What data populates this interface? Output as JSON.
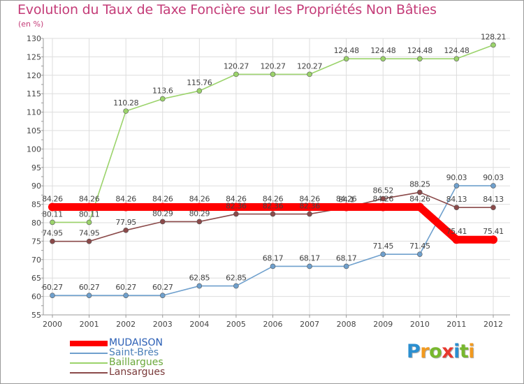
{
  "title": "Evolution du Taux de Taxe Foncière sur les Propriétés Non Bâties",
  "unit_label": "(en %)",
  "logo": {
    "letters": [
      "P",
      "r",
      "o",
      "x",
      "i",
      "t",
      "i"
    ],
    "colors": [
      "#2b8fd0",
      "#f29a1f",
      "#78b82e",
      "#e8382e",
      "#2b8fd0",
      "#78b82e",
      "#f29a1f"
    ]
  },
  "chart_data": {
    "type": "line",
    "x": [
      "2000",
      "2001",
      "2002",
      "2003",
      "2004",
      "2005",
      "2006",
      "2007",
      "2008",
      "2009",
      "2010",
      "2011",
      "2012"
    ],
    "ylim": [
      55,
      130
    ],
    "yticks": [
      "55",
      "60",
      "65",
      "70",
      "75",
      "80",
      "85",
      "90",
      "95",
      "100",
      "105",
      "110",
      "115",
      "120",
      "125",
      "130"
    ],
    "grid": true,
    "legend_position": "bottom-left",
    "series": [
      {
        "name": "MUDAISON",
        "color": "#ff0000",
        "values": [
          84.26,
          84.26,
          84.26,
          84.26,
          84.26,
          84.26,
          84.26,
          84.26,
          84.26,
          84.26,
          84.26,
          75.41,
          75.41
        ],
        "labels": [
          "84.26",
          "84.26",
          "84.26",
          "84.26",
          "84.26",
          "84.26",
          "84.26",
          "84.26",
          "84.26",
          "84.26",
          "84.26",
          "75.41",
          "75.41"
        ]
      },
      {
        "name": "Saint-Brès",
        "color": "#6fa0cd",
        "values": [
          60.27,
          60.27,
          60.27,
          60.27,
          62.85,
          62.85,
          68.17,
          68.17,
          68.17,
          71.45,
          71.45,
          90.03,
          90.03
        ],
        "labels": [
          "60.27",
          "60.27",
          "60.27",
          "60.27",
          "62.85",
          "62.85",
          "68.17",
          "68.17",
          "68.17",
          "71.45",
          "71.45",
          "90.03",
          "90.03"
        ]
      },
      {
        "name": "Baillargues",
        "color": "#9bd36b",
        "values": [
          80.11,
          80.11,
          110.28,
          113.6,
          115.76,
          120.27,
          120.27,
          120.27,
          124.48,
          124.48,
          124.48,
          124.48,
          128.21
        ],
        "labels": [
          "80.11",
          "80.11",
          "110.28",
          "113.6",
          "115.76",
          "120.27",
          "120.27",
          "120.27",
          "124.48",
          "124.48",
          "124.48",
          "124.48",
          "128.21"
        ]
      },
      {
        "name": "Lansargues",
        "color": "#8b4a4a",
        "values": [
          74.95,
          74.95,
          77.95,
          80.29,
          80.29,
          82.36,
          82.36,
          82.36,
          84.1,
          86.52,
          88.25,
          84.13,
          84.13
        ],
        "labels": [
          "74.95",
          "74.95",
          "77.95",
          "80.29",
          "80.29",
          "82.36",
          "82.36",
          "82.36",
          "84.1",
          "86.52",
          "88.25",
          "84.13",
          "84.13"
        ]
      }
    ]
  }
}
